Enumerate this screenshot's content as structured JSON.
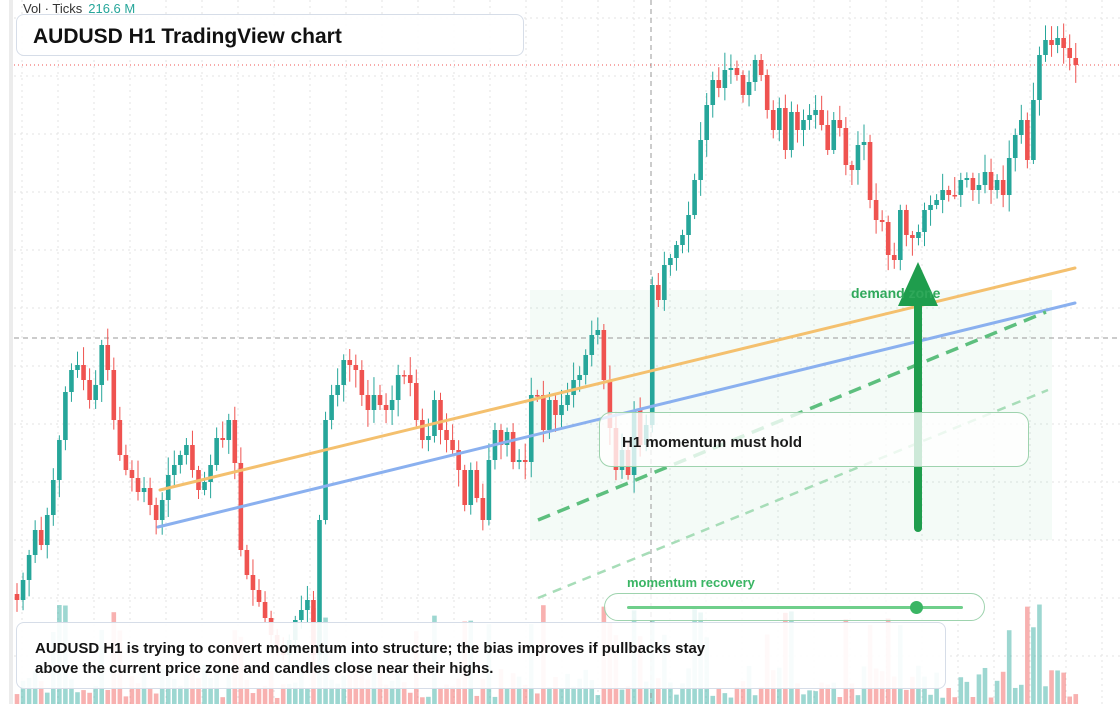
{
  "title": "AUDUSD H1 TradingView chart",
  "volume_legend": {
    "label": "Vol · Ticks",
    "value": "216.6 M"
  },
  "callout": {
    "text": "H1 momentum must hold"
  },
  "demand_zone": {
    "label": "demand zone"
  },
  "momentum_slider": {
    "label": "momentum recovery",
    "level": 0.86
  },
  "summary": {
    "text": "AUDUSD H1 is trying to convert momentum into structure; the bias improves if pullbacks stay above the current price zone and candles close near their highs."
  },
  "colors": {
    "up": "#26a69a",
    "down": "#ef5350",
    "trend_orange": "#f4c06e",
    "trend_blue": "#8ab0ef",
    "accent_green": "#2fa85a",
    "price_line": "#ef5350"
  },
  "icons": [
    "up-arrow-icon"
  ],
  "chart_data": {
    "type": "candlestick",
    "symbol": "AUDUSD",
    "timeframe": "H1",
    "closes": [
      600,
      580,
      555,
      530,
      545,
      515,
      480,
      440,
      392,
      370,
      365,
      380,
      400,
      385,
      345,
      370,
      420,
      455,
      470,
      478,
      492,
      488,
      505,
      520,
      500,
      475,
      465,
      455,
      445,
      470,
      490,
      482,
      465,
      438,
      440,
      420,
      463,
      550,
      575,
      590,
      602,
      618,
      635,
      650,
      655,
      640,
      620,
      610,
      600,
      655,
      520,
      420,
      395,
      385,
      360,
      365,
      370,
      395,
      410,
      395,
      405,
      410,
      400,
      375,
      375,
      383,
      420,
      440,
      436,
      400,
      430,
      440,
      450,
      470,
      505,
      470,
      498,
      520,
      460,
      430,
      445,
      432,
      462,
      460,
      462,
      395,
      395,
      430,
      400,
      415,
      405,
      395,
      380,
      375,
      355,
      335,
      330,
      380,
      428,
      470,
      450,
      475,
      410,
      445,
      425,
      285,
      300,
      265,
      258,
      245,
      235,
      215,
      180,
      140,
      105,
      80,
      88,
      70,
      68,
      75,
      95,
      82,
      60,
      75,
      110,
      130,
      108,
      150,
      112,
      130,
      120,
      115,
      110,
      125,
      150,
      120,
      128,
      165,
      170,
      145,
      142,
      200,
      220,
      222,
      255,
      260,
      210,
      235,
      238,
      232,
      210,
      205,
      200,
      190,
      195,
      195,
      180,
      178,
      190,
      185,
      172,
      190,
      180,
      195,
      158,
      135,
      120,
      160,
      100,
      55,
      40,
      45,
      38,
      48,
      58,
      65
    ],
    "price_line_level": "current",
    "markers": [
      "demand zone",
      "H1 momentum must hold",
      "momentum recovery"
    ]
  }
}
